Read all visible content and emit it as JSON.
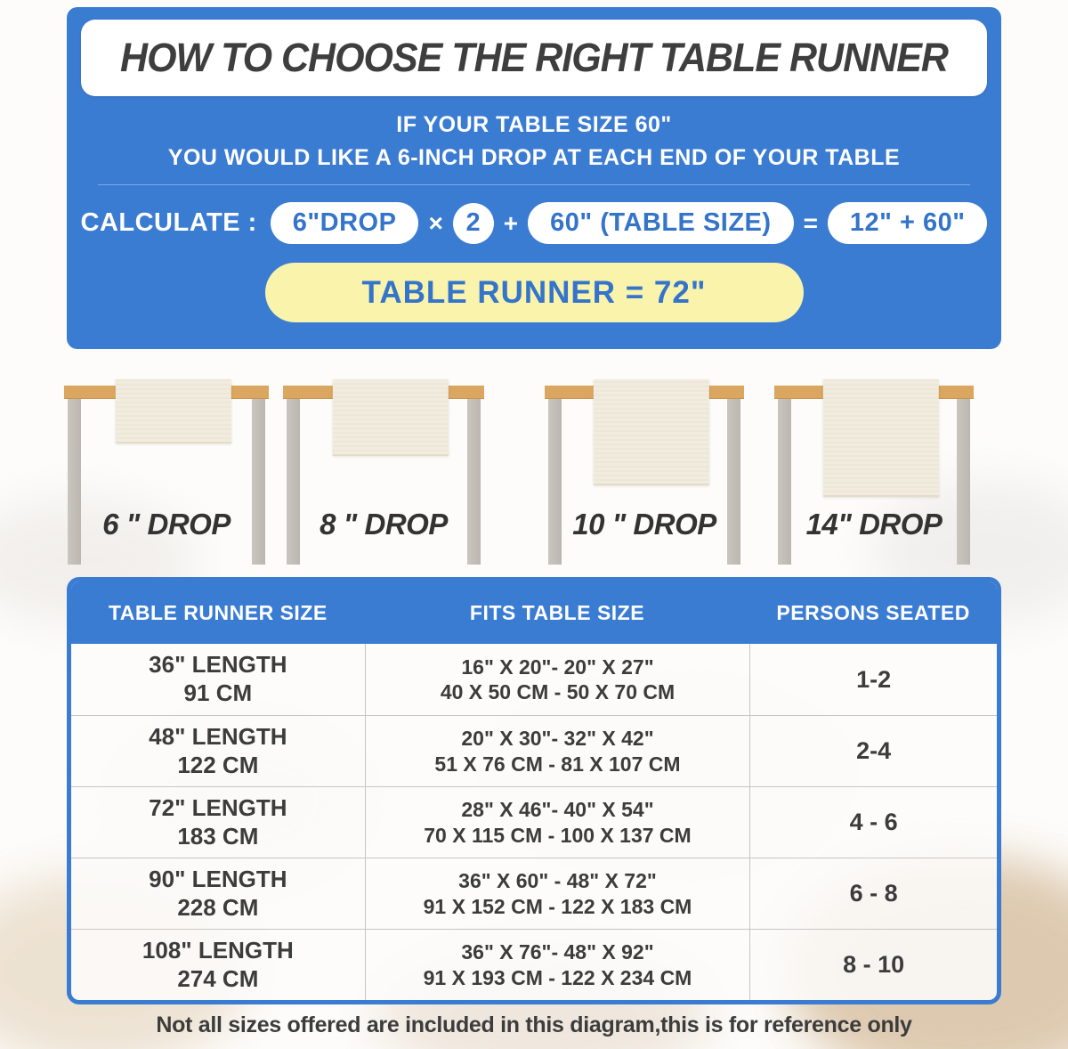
{
  "colors": {
    "panel_blue": "#3b7cd3",
    "pill_text_blue": "#3474ca",
    "result_yellow": "#f9f3ac",
    "title_text": "#3e3e3e",
    "tabletop_tan": "#dba65f",
    "leg_gray": "#c4beb8",
    "runner_cream": "#f1ecdd"
  },
  "header": {
    "title": "HOW TO CHOOSE THE RIGHT TABLE RUNNER",
    "subtitle_line1": "IF YOUR TABLE SIZE 60\"",
    "subtitle_line2": "YOU WOULD LIKE A 6-INCH DROP AT EACH END OF YOUR TABLE",
    "calculate_label": "CALCULATE :",
    "calc_pill_drop": "6\"DROP",
    "calc_times": "×",
    "calc_multiplier": "2",
    "calc_plus": "+",
    "calc_pill_table": "60\" (TABLE SIZE)",
    "calc_equals": "=",
    "calc_pill_sum": "12\" + 60\"",
    "result": "TABLE RUNNER = 72\""
  },
  "drop_figures": [
    {
      "label": "6 \" DROP"
    },
    {
      "label": "8 \" DROP"
    },
    {
      "label": "10 \" DROP"
    },
    {
      "label": "14\" DROP"
    }
  ],
  "size_table": {
    "headers": [
      "TABLE RUNNER SIZE",
      "FITS TABLE SIZE",
      "PERSONS SEATED"
    ],
    "rows": [
      {
        "size1": "36\" LENGTH",
        "size2": "91 CM",
        "fits1": "16\" X 20\"- 20\" X 27\"",
        "fits2": "40 X 50 CM - 50 X 70 CM",
        "persons": "1-2"
      },
      {
        "size1": "48\" LENGTH",
        "size2": "122 CM",
        "fits1": "20\" X 30\"- 32\" X 42\"",
        "fits2": "51 X 76 CM - 81 X 107 CM",
        "persons": "2-4"
      },
      {
        "size1": "72\" LENGTH",
        "size2": "183 CM",
        "fits1": "28\" X 46\"- 40\" X 54\"",
        "fits2": "70 X 115 CM - 100 X 137 CM",
        "persons": "4 - 6"
      },
      {
        "size1": "90\" LENGTH",
        "size2": "228 CM",
        "fits1": "36\" X 60\" - 48\" X 72\"",
        "fits2": "91 X 152 CM - 122 X 183 CM",
        "persons": "6 - 8"
      },
      {
        "size1": "108\" LENGTH",
        "size2": "274 CM",
        "fits1": "36\" X 76\"- 48\" X 92\"",
        "fits2": "91 X 193 CM - 122 X 234 CM",
        "persons": "8 - 10"
      }
    ]
  },
  "footnote": "Not all sizes offered are included in this diagram,this is for reference only"
}
